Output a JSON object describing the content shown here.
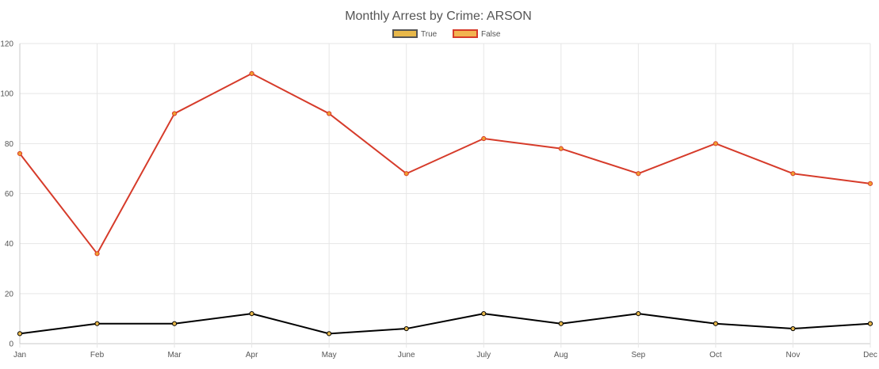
{
  "chart_data": {
    "type": "line",
    "title": "Monthly Arrest by Crime: ARSON",
    "categories": [
      "Jan",
      "Feb",
      "Mar",
      "Apr",
      "May",
      "June",
      "July",
      "Aug",
      "Sep",
      "Oct",
      "Nov",
      "Dec"
    ],
    "ylim": [
      0,
      120
    ],
    "yticks": [
      0,
      20,
      40,
      60,
      80,
      100,
      120
    ],
    "grid": true,
    "legend_position": "top-center",
    "series": [
      {
        "name": "True",
        "values": [
          4,
          8,
          8,
          12,
          4,
          6,
          12,
          8,
          12,
          8,
          6,
          8
        ],
        "line_color": "#000000",
        "point_fill": "#e8b84a",
        "legend_fill": "#e8b84a",
        "legend_border": "#555555"
      },
      {
        "name": "False",
        "values": [
          76,
          36,
          92,
          108,
          92,
          68,
          82,
          78,
          68,
          80,
          68,
          64
        ],
        "line_color": "#d63b2a",
        "point_fill": "#f0a030",
        "legend_fill": "#f2b450",
        "legend_border": "#d63b2a"
      }
    ]
  }
}
